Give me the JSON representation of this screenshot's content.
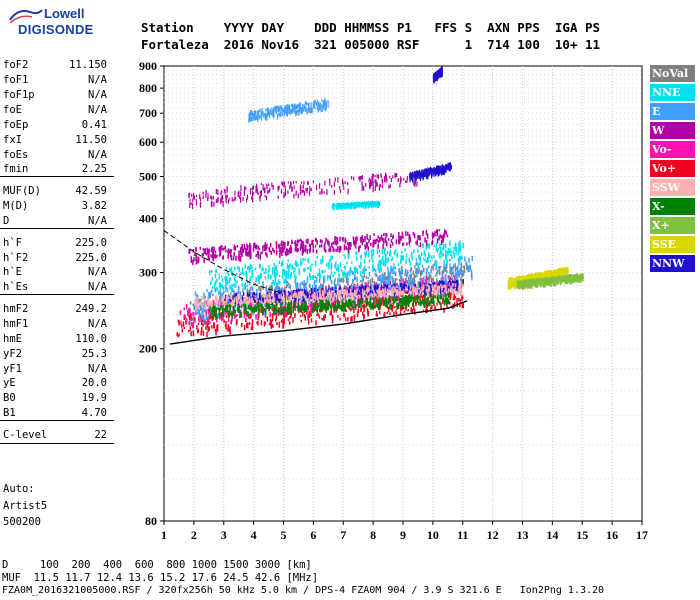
{
  "logo": {
    "line1": "Lowell",
    "line2": "DIGISONDE"
  },
  "header": {
    "row1": "Station    YYYY DAY    DDD HHMMSS P1   FFS S  AXN PPS  IGA PS",
    "row2": "Fortaleza  2016 Nov16  321 005000 RSF      1  714 100  10+ 11"
  },
  "params": [
    {
      "name": "foF2",
      "value": "11.150"
    },
    {
      "name": "foF1",
      "value": "N/A"
    },
    {
      "name": "foF1p",
      "value": "N/A"
    },
    {
      "name": "foE",
      "value": "N/A"
    },
    {
      "name": "foEp",
      "value": "0.41"
    },
    {
      "name": "fxI",
      "value": "11.50"
    },
    {
      "name": "foEs",
      "value": "N/A"
    },
    {
      "name": "fmin",
      "value": "2.25"
    },
    {
      "name": "MUF(D)",
      "value": "42.59"
    },
    {
      "name": "M(D)",
      "value": "3.82"
    },
    {
      "name": "D",
      "value": "N/A"
    },
    {
      "name": "h`F",
      "value": "225.0"
    },
    {
      "name": "h`F2",
      "value": "225.0"
    },
    {
      "name": "h`E",
      "value": "N/A"
    },
    {
      "name": "h`Es",
      "value": "N/A"
    },
    {
      "name": "hmF2",
      "value": "249.2"
    },
    {
      "name": "hmF1",
      "value": "N/A"
    },
    {
      "name": "hmE",
      "value": "110.0"
    },
    {
      "name": "yF2",
      "value": "25.3"
    },
    {
      "name": "yF1",
      "value": "N/A"
    },
    {
      "name": "yE",
      "value": "20.0"
    },
    {
      "name": "B0",
      "value": "19.9"
    },
    {
      "name": "B1",
      "value": "4.70"
    },
    {
      "name": "C-level",
      "value": "22"
    }
  ],
  "auto": {
    "label": "Auto:",
    "artist": "Artist5",
    "version": "500200"
  },
  "legend": [
    {
      "label": "NoVal",
      "color": "#808080"
    },
    {
      "label": "NNE",
      "color": "#00e0f0"
    },
    {
      "label": "E",
      "color": "#40a0ff"
    },
    {
      "label": "W",
      "color": "#b000a8"
    },
    {
      "label": "Vo-",
      "color": "#ff10b0"
    },
    {
      "label": "Vo+",
      "color": "#f00020"
    },
    {
      "label": "SSW",
      "color": "#ffb0b0"
    },
    {
      "label": "X-",
      "color": "#008000"
    },
    {
      "label": "X+",
      "color": "#80c040"
    },
    {
      "label": "SSE",
      "color": "#d8d800"
    },
    {
      "label": "NNW",
      "color": "#2010d0"
    }
  ],
  "footer": {
    "line1": "D     100  200  400  600  800 1000 1500 3000 [km]",
    "line2": "MUF  11.5 11.7 12.4 13.6 15.2 17.6 24.5 42.6 [MHz]",
    "line3": "FZA0M_2016321005000.RSF / 320fx256h 50 kHz 5.0 km / DPS-4 FZA0M 904 / 3.9 S 321.6 E   Ion2Png 1.3.20"
  },
  "chart_data": {
    "type": "scatter",
    "title": "",
    "xlabel": "",
    "ylabel": "",
    "xlim": [
      1,
      17
    ],
    "ylim": [
      80,
      900
    ],
    "y_scale": "log",
    "x_ticks": [
      "1",
      "2",
      "3",
      "4",
      "5",
      "6",
      "7",
      "8",
      "9",
      "10",
      "11",
      "12",
      "13",
      "14",
      "15",
      "16",
      "17"
    ],
    "y_ticks": [
      80,
      200,
      300,
      400,
      500,
      600,
      700,
      800,
      900
    ],
    "grid": true,
    "profile_line": [
      [
        1.2,
        205
      ],
      [
        3,
        214
      ],
      [
        5,
        220
      ],
      [
        7,
        228
      ],
      [
        9,
        240
      ],
      [
        10.5,
        248
      ],
      [
        11.15,
        258
      ]
    ],
    "dashed_line": [
      [
        1,
        375
      ],
      [
        2,
        335
      ],
      [
        3,
        305
      ],
      [
        4,
        282
      ],
      [
        5,
        268
      ]
    ],
    "traces": [
      {
        "series": "NoVal",
        "x": [
          1.8,
          11.2
        ],
        "y": [
          230,
          320
        ]
      },
      {
        "series": "Vo+",
        "x": [
          1.4,
          11.0
        ],
        "y": [
          215,
          275
        ]
      },
      {
        "series": "Vo-",
        "x": [
          1.5,
          10.8
        ],
        "y": [
          225,
          300
        ]
      },
      {
        "series": "E",
        "x": [
          2.0,
          11.3
        ],
        "y": [
          235,
          330
        ]
      },
      {
        "series": "NNE",
        "x": [
          2.5,
          11.0
        ],
        "y": [
          270,
          360
        ]
      },
      {
        "series": "W",
        "x": [
          1.8,
          10.5
        ],
        "y": [
          320,
          380
        ]
      },
      {
        "series": "SSE",
        "x": [
          12.5,
          14.5
        ],
        "y": [
          280,
          310
        ]
      },
      {
        "series": "X+",
        "x": [
          12.8,
          15.0
        ],
        "y": [
          280,
          300
        ]
      },
      {
        "series": "NNW",
        "x": [
          3.0,
          11.0
        ],
        "y": [
          255,
          290
        ]
      },
      {
        "series": "SSW",
        "x": [
          2.0,
          11.0
        ],
        "y": [
          250,
          285
        ]
      },
      {
        "series": "X-",
        "x": [
          2.5,
          10.5
        ],
        "y": [
          240,
          270
        ]
      }
    ],
    "upper_clusters": [
      {
        "series": "W",
        "x": [
          1.8,
          9.5
        ],
        "y": [
          430,
          520
        ]
      },
      {
        "series": "NNW",
        "x": [
          9.2,
          10.6
        ],
        "y": [
          495,
          540
        ]
      },
      {
        "series": "NNE",
        "x": [
          6.6,
          8.2
        ],
        "y": [
          430,
          440
        ]
      },
      {
        "series": "E",
        "x": [
          3.8,
          6.5
        ],
        "y": [
          680,
          760
        ]
      },
      {
        "series": "NNW",
        "x": [
          10.0,
          10.3
        ],
        "y": [
          840,
          900
        ]
      }
    ]
  }
}
